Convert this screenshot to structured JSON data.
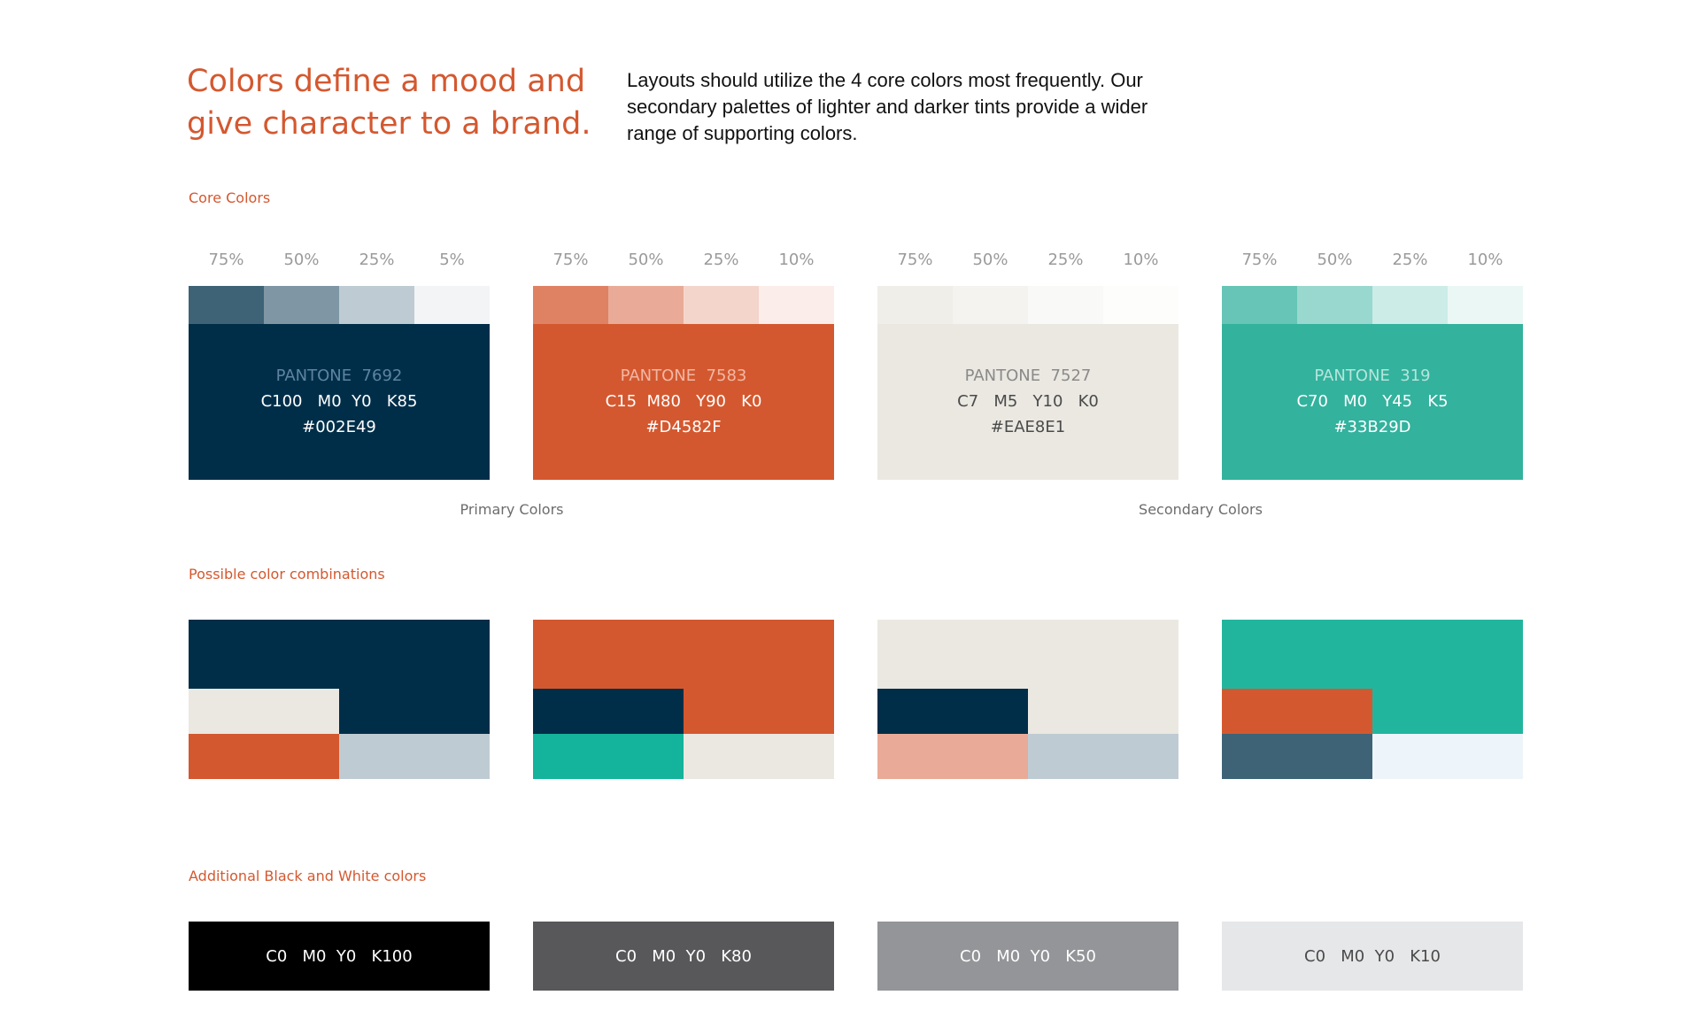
{
  "header": {
    "headline": "Colors define a mood and give character to a brand.",
    "intro": "Layouts should utilize the 4 core colors most frequently. Our secondary palettes of lighter and darker tints provide a wider range of supporting colors."
  },
  "core": {
    "title": "Core Colors",
    "swatches": [
      {
        "tint_labels": [
          "75%",
          "50%",
          "25%",
          "5%"
        ],
        "tints": [
          "#3E6377",
          "#7F97A4",
          "#BFCBD2",
          "#F2F4F6"
        ],
        "base": "#002E49",
        "text_color": "#ffffff",
        "pantone_color": "#5F84A0",
        "pantone": "PANTONE  7692",
        "cmyk": "C100   M0  Y0   K85",
        "hex": "#002E49"
      },
      {
        "tint_labels": [
          "75%",
          "50%",
          "25%",
          "10%"
        ],
        "tints": [
          "#DF8263",
          "#E9AB97",
          "#F4D5CB",
          "#FBEEEA"
        ],
        "base": "#D4582F",
        "text_color": "#ffffff",
        "pantone_color": "#F2B7A3",
        "pantone": "PANTONE  7583",
        "cmyk": "C15  M80   Y90   K0",
        "hex": "#D4582F"
      },
      {
        "tint_labels": [
          "75%",
          "50%",
          "25%",
          "10%"
        ],
        "tints": [
          "#EFEEE8",
          "#F4F3EF",
          "#F9F9F7",
          "#FDFDFC"
        ],
        "base": "#EAE8E1",
        "text_color": "#4a4a4a",
        "pantone_color": "#8a8a8a",
        "pantone": "PANTONE  7527",
        "cmyk": "C7   M5   Y10   K0",
        "hex": "#EAE8E1"
      },
      {
        "tint_labels": [
          "75%",
          "50%",
          "25%",
          "10%"
        ],
        "tints": [
          "#66C5B6",
          "#99D8CE",
          "#CCECE7",
          "#EBF7F5"
        ],
        "base": "#33B29D",
        "text_color": "#ffffff",
        "pantone_color": "#B5E5DC",
        "pantone": "PANTONE  319",
        "cmyk": "C70   M0   Y45   K5",
        "hex": "#33B29D"
      }
    ],
    "primary_label": "Primary Colors",
    "secondary_label": "Secondary Colors"
  },
  "combinations": {
    "title": "Possible color combinations"
  },
  "bw": {
    "title": "Additional Black and White colors",
    "items": [
      {
        "label": "C0   M0  Y0   K100",
        "bg": "#000000",
        "fg": "#ffffff"
      },
      {
        "label": "C0   M0  Y0   K80",
        "bg": "#58585A",
        "fg": "#ffffff"
      },
      {
        "label": "C0   M0  Y0   K50",
        "bg": "#939598",
        "fg": "#ffffff"
      },
      {
        "label": "C0   M0  Y0   K10",
        "bg": "#E6E7E8",
        "fg": "#4a4a4a"
      }
    ]
  }
}
